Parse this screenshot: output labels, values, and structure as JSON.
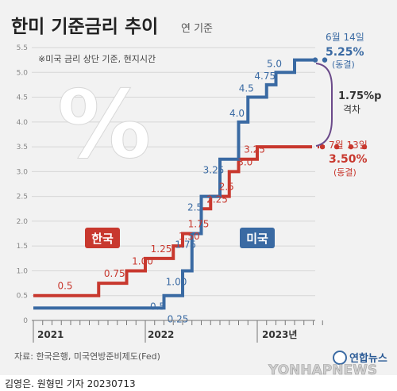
{
  "chart_data": {
    "type": "line",
    "title": "한미 기준금리 추이",
    "subtitle": "연 기준",
    "note": "※미국 금리 상단 기준, 현지시간",
    "x_labels": [
      "2021",
      "2022",
      "2023년"
    ],
    "y_ticks": [
      "0",
      "0.5",
      "1.0",
      "1.5",
      "2.0",
      "2.5",
      "3.0",
      "3.5",
      "4.0",
      "4.5",
      "5.0",
      "5.5"
    ],
    "ylim": [
      0,
      5.5
    ],
    "legend": {
      "korea": "한국",
      "us": "미국"
    },
    "series": [
      {
        "name": "한국",
        "color": "#c8382e",
        "steps": [
          {
            "date": "2021-01",
            "value": 0.5
          },
          {
            "date": "2021-08",
            "value": 0.75
          },
          {
            "date": "2021-11",
            "value": 1.0
          },
          {
            "date": "2022-01",
            "value": 1.25
          },
          {
            "date": "2022-04",
            "value": 1.5
          },
          {
            "date": "2022-05",
            "value": 1.75
          },
          {
            "date": "2022-07",
            "value": 2.25
          },
          {
            "date": "2022-08",
            "value": 2.5
          },
          {
            "date": "2022-10",
            "value": 3.0
          },
          {
            "date": "2022-11",
            "value": 3.25
          },
          {
            "date": "2023-01",
            "value": 3.5
          }
        ],
        "value_labels": [
          "0.5",
          "0.75",
          "1.00",
          "1.25",
          "1.50",
          "1.75",
          "2.25",
          "2.5",
          "3.0",
          "3.25"
        ]
      },
      {
        "name": "미국",
        "color": "#3a6aa3",
        "steps": [
          {
            "date": "2021-01",
            "value": 0.25
          },
          {
            "date": "2022-03",
            "value": 0.5
          },
          {
            "date": "2022-05",
            "value": 1.0
          },
          {
            "date": "2022-06",
            "value": 1.75
          },
          {
            "date": "2022-07",
            "value": 2.5
          },
          {
            "date": "2022-09",
            "value": 3.25
          },
          {
            "date": "2022-11",
            "value": 4.0
          },
          {
            "date": "2022-12",
            "value": 4.5
          },
          {
            "date": "2023-02",
            "value": 4.75
          },
          {
            "date": "2023-03",
            "value": 5.0
          },
          {
            "date": "2023-05",
            "value": 5.25
          }
        ],
        "value_labels": [
          "0.25",
          "0.5",
          "1.00",
          "1.75",
          "2.5",
          "3.25",
          "4.0",
          "4.5",
          "4.75",
          "5.0"
        ]
      }
    ],
    "annotations": {
      "us_date": "6월 14일",
      "us_rate": "5.25%",
      "us_status": "(동결)",
      "kr_date": "7월 13일",
      "kr_rate": "3.50%",
      "kr_status": "(동결)",
      "gap_value": "1.75%p",
      "gap_label": "격차"
    },
    "grid": true
  },
  "source": "자료: 한국은행, 미국연방준비제도(Fed)",
  "byline": "김영은. 원형민 기자  20230713",
  "agency": "연합뉴스",
  "watermark": "YONHAPNEWS",
  "colors": {
    "korea": "#c8382e",
    "us": "#3a6aa3",
    "gap": "#6b4a8a",
    "background": "#f2f2f2"
  }
}
